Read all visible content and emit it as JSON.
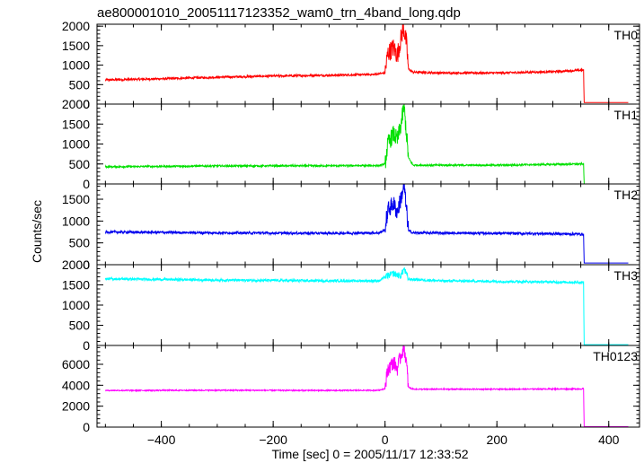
{
  "chart_data": {
    "type": "line",
    "title": "ae800001010_20051117123352_wam0_trn_4band_long.qdp",
    "xlabel": "Time [sec] 0 = 2005/11/17 12:33:52",
    "ylabel": "Counts/sec",
    "xlim": [
      -515,
      455
    ],
    "xticks": [
      -400,
      -200,
      0,
      200,
      400
    ],
    "grid": false,
    "panels": [
      {
        "name": "TH0",
        "color": "#ff0000",
        "ylim": [
          0,
          2050
        ],
        "yticks": [
          0,
          500,
          1000,
          1500,
          2000
        ],
        "profile": [
          [
            -500,
            620
          ],
          [
            -400,
            650
          ],
          [
            -300,
            690
          ],
          [
            -200,
            720
          ],
          [
            -100,
            740
          ],
          [
            -20,
            760
          ],
          [
            0,
            800
          ],
          [
            5,
            1300
          ],
          [
            15,
            1450
          ],
          [
            22,
            1250
          ],
          [
            28,
            1650
          ],
          [
            33,
            1980
          ],
          [
            38,
            1600
          ],
          [
            42,
            900
          ],
          [
            50,
            820
          ],
          [
            100,
            800
          ],
          [
            200,
            800
          ],
          [
            300,
            830
          ],
          [
            350,
            870
          ],
          [
            355,
            870
          ],
          [
            356,
            40
          ],
          [
            435,
            40
          ]
        ],
        "noise": 28,
        "burst_noise": 250
      },
      {
        "name": "TH1",
        "color": "#00e000",
        "ylim": [
          0,
          2000
        ],
        "yticks": [
          0,
          500,
          1000,
          1500,
          2000
        ],
        "profile": [
          [
            -500,
            430
          ],
          [
            -300,
            450
          ],
          [
            -100,
            455
          ],
          [
            -10,
            460
          ],
          [
            0,
            500
          ],
          [
            5,
            1000
          ],
          [
            15,
            1250
          ],
          [
            22,
            1100
          ],
          [
            28,
            1450
          ],
          [
            34,
            1950
          ],
          [
            38,
            1300
          ],
          [
            42,
            650
          ],
          [
            50,
            470
          ],
          [
            200,
            470
          ],
          [
            300,
            490
          ],
          [
            355,
            500
          ],
          [
            356,
            0
          ],
          [
            435,
            0
          ]
        ],
        "noise": 22,
        "burst_noise": 220
      },
      {
        "name": "TH2",
        "color": "#0000ee",
        "ylim": [
          0,
          1850
        ],
        "yticks": [
          0,
          500,
          1000,
          1500
        ],
        "profile": [
          [
            -500,
            750
          ],
          [
            -300,
            730
          ],
          [
            -100,
            720
          ],
          [
            -10,
            730
          ],
          [
            0,
            800
          ],
          [
            5,
            1250
          ],
          [
            15,
            1400
          ],
          [
            22,
            1200
          ],
          [
            28,
            1500
          ],
          [
            34,
            1800
          ],
          [
            38,
            1300
          ],
          [
            42,
            780
          ],
          [
            50,
            730
          ],
          [
            200,
            720
          ],
          [
            300,
            710
          ],
          [
            355,
            700
          ],
          [
            356,
            40
          ],
          [
            435,
            40
          ]
        ],
        "noise": 28,
        "burst_noise": 200
      },
      {
        "name": "TH3",
        "color": "#00ffff",
        "ylim": [
          0,
          2000
        ],
        "yticks": [
          0,
          500,
          1000,
          1500,
          2000
        ],
        "profile": [
          [
            -500,
            1650
          ],
          [
            -300,
            1620
          ],
          [
            -100,
            1600
          ],
          [
            -10,
            1600
          ],
          [
            0,
            1700
          ],
          [
            15,
            1780
          ],
          [
            28,
            1720
          ],
          [
            34,
            1900
          ],
          [
            42,
            1640
          ],
          [
            100,
            1600
          ],
          [
            250,
            1580
          ],
          [
            355,
            1560
          ],
          [
            356,
            20
          ],
          [
            435,
            20
          ]
        ],
        "noise": 30,
        "burst_noise": 80
      },
      {
        "name": "TH0123",
        "color": "#ff00ff",
        "ylim": [
          0,
          7800
        ],
        "yticks": [
          0,
          2000,
          4000,
          6000
        ],
        "profile": [
          [
            -500,
            3500
          ],
          [
            -300,
            3520
          ],
          [
            -100,
            3500
          ],
          [
            -10,
            3520
          ],
          [
            0,
            3700
          ],
          [
            5,
            5500
          ],
          [
            15,
            6200
          ],
          [
            22,
            5600
          ],
          [
            28,
            6800
          ],
          [
            34,
            7700
          ],
          [
            38,
            6200
          ],
          [
            42,
            3800
          ],
          [
            50,
            3620
          ],
          [
            200,
            3620
          ],
          [
            300,
            3640
          ],
          [
            355,
            3650
          ],
          [
            356,
            40
          ],
          [
            435,
            40
          ]
        ],
        "noise": 55,
        "burst_noise": 700
      }
    ]
  }
}
